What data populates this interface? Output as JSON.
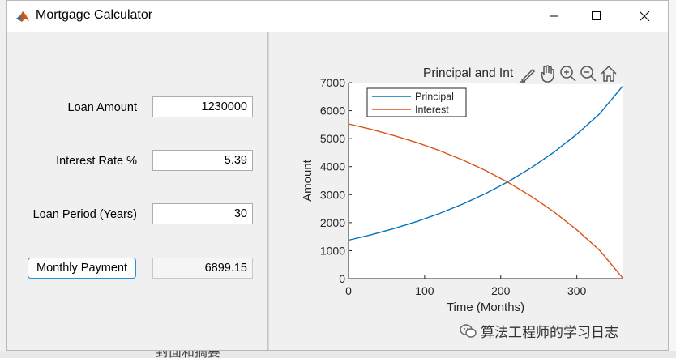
{
  "window": {
    "title": "Mortgage Calculator"
  },
  "form": {
    "loan_amount": {
      "label": "Loan Amount",
      "value": "1230000"
    },
    "interest_rate": {
      "label": "Interest Rate %",
      "value": "5.39"
    },
    "loan_period": {
      "label": "Loan Period (Years)",
      "value": "30"
    },
    "monthly_payment": {
      "button_label": "Monthly Payment",
      "value": "6899.15"
    }
  },
  "toolbar_icons": [
    "brush-icon",
    "pan-hand-icon",
    "zoom-in-icon",
    "zoom-out-icon",
    "home-icon"
  ],
  "chart_data": {
    "type": "line",
    "title": "Principal and Int",
    "xlabel": "Time (Months)",
    "ylabel": "Amount",
    "xlim": [
      0,
      360
    ],
    "ylim": [
      0,
      7000
    ],
    "xticks": [
      "0",
      "100",
      "200",
      "300"
    ],
    "yticks": [
      "0",
      "1000",
      "2000",
      "3000",
      "4000",
      "5000",
      "6000",
      "7000"
    ],
    "legend_position": "top-left",
    "grid": false,
    "series": [
      {
        "name": "Principal",
        "color": "#0072bd",
        "x": [
          0,
          30,
          60,
          90,
          120,
          150,
          180,
          210,
          240,
          270,
          300,
          330,
          360
        ],
        "y": [
          1374,
          1568,
          1790,
          2043,
          2332,
          2662,
          3038,
          3468,
          3958,
          4518,
          5157,
          5886,
          6868
        ]
      },
      {
        "name": "Interest",
        "color": "#d95319",
        "x": [
          0,
          30,
          60,
          90,
          120,
          150,
          180,
          210,
          240,
          270,
          300,
          330,
          360
        ],
        "y": [
          5525,
          5331,
          5109,
          4856,
          4567,
          4237,
          3861,
          3431,
          2941,
          2381,
          1742,
          1013,
          31
        ]
      }
    ]
  },
  "watermark": {
    "text": "算法工程师的学习日志",
    "icon": "wechat-icon"
  },
  "background": {
    "partial_text": "封面和摘要"
  }
}
